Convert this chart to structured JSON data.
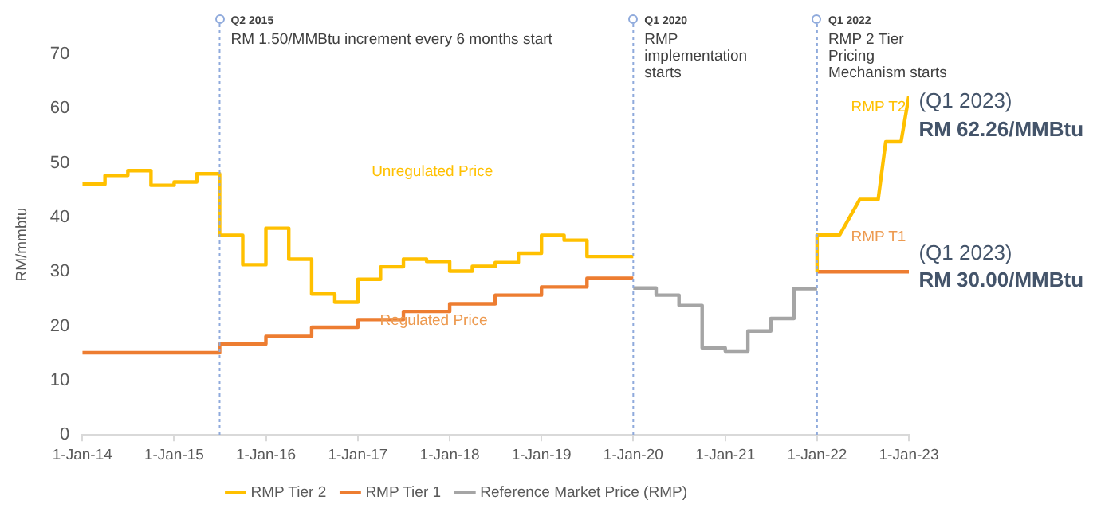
{
  "chart_data": {
    "type": "step",
    "ylabel": "RM/mmbtu",
    "xlim": [
      "2014-01-01",
      "2023-01-01"
    ],
    "xticks": [
      {
        "value": "2014-01-01",
        "label": "1-Jan-14"
      },
      {
        "value": "2015-01-01",
        "label": "1-Jan-15"
      },
      {
        "value": "2016-01-01",
        "label": "1-Jan-16"
      },
      {
        "value": "2017-01-01",
        "label": "1-Jan-17"
      },
      {
        "value": "2018-01-01",
        "label": "1-Jan-18"
      },
      {
        "value": "2019-01-01",
        "label": "1-Jan-19"
      },
      {
        "value": "2020-01-01",
        "label": "1-Jan-20"
      },
      {
        "value": "2021-01-01",
        "label": "1-Jan-21"
      },
      {
        "value": "2022-01-01",
        "label": "1-Jan-22"
      },
      {
        "value": "2023-01-01",
        "label": "1-Jan-23"
      }
    ],
    "ylim": [
      0,
      70
    ],
    "yticks": [
      0,
      10,
      20,
      30,
      40,
      50,
      60,
      70
    ],
    "grid": false,
    "legend": "bottom",
    "marker": "none",
    "line_style": "solid",
    "series": [
      {
        "name": "RMP Tier 2",
        "color": "#ffc000",
        "type": "line",
        "x": [
          "2014-01",
          "2014-04",
          "2014-04",
          "2014-07",
          "2014-07",
          "2014-10",
          "2014-10",
          "2015-01",
          "2015-01",
          "2015-04",
          "2015-04",
          "2015-07",
          "2015-07",
          "2015-10",
          "2015-10",
          "2016-01",
          "2016-01",
          "2016-04",
          "2016-04",
          "2016-07",
          "2016-07",
          "2016-10",
          "2016-10",
          "2017-01",
          "2017-01",
          "2017-04",
          "2017-04",
          "2017-07",
          "2017-07",
          "2017-10",
          "2017-10",
          "2018-01",
          "2018-01",
          "2018-04",
          "2018-04",
          "2018-07",
          "2018-07",
          "2018-10",
          "2018-10",
          "2019-01",
          "2019-01",
          "2019-04",
          "2019-04",
          "2019-07",
          "2019-07",
          "2020-01",
          "2021-01",
          "2022-01",
          "2022-01",
          "2022-04",
          "2022-06-20",
          "2022-09",
          "2022-10",
          "2022-12",
          "2023-01"
        ],
        "values": [
          46.1,
          46.1,
          47.7,
          47.7,
          48.6,
          48.6,
          45.9,
          45.9,
          46.5,
          46.5,
          48.0,
          48.0,
          36.7,
          36.7,
          31.3,
          31.3,
          38.0,
          38.0,
          32.3,
          32.3,
          25.9,
          25.9,
          24.4,
          24.4,
          28.6,
          28.6,
          30.9,
          30.9,
          32.3,
          32.3,
          31.9,
          31.9,
          30.1,
          30.1,
          31.0,
          31.0,
          31.7,
          31.7,
          33.4,
          33.4,
          36.7,
          36.7,
          35.8,
          35.8,
          32.8,
          32.8,
          null,
          30.0,
          36.8,
          36.8,
          43.3,
          43.3,
          53.9,
          53.9,
          62.26
        ]
      },
      {
        "name": "RMP Tier 1",
        "color": "#ed7d31",
        "x": [
          "2014-01",
          "2015-07",
          "2016-01",
          "2016-07",
          "2017-01",
          "2017-07",
          "2018-01",
          "2018-07",
          "2019-01",
          "2019-07",
          "2020-01",
          "2021-01",
          "2022-01",
          "2023-01"
        ],
        "values": [
          15.1,
          16.7,
          18.1,
          19.8,
          21.2,
          22.7,
          24.1,
          25.7,
          27.2,
          28.8,
          28.8,
          null,
          30.0,
          30.0
        ]
      },
      {
        "name": "Reference Market Price (RMP)",
        "color": "#a5a5a5",
        "x": [
          "2020-01",
          "2020-04",
          "2020-07",
          "2020-10",
          "2021-01",
          "2021-04",
          "2021-07",
          "2021-10",
          "2022-01"
        ],
        "values": [
          27.0,
          25.7,
          23.8,
          16.0,
          15.4,
          19.1,
          21.4,
          26.9,
          26.9
        ]
      }
    ],
    "ref_lines": [
      {
        "axis": "x",
        "value": "2015-07-01",
        "label": "Q2 2015\nRM 1.50/MMBtu increment every 6 months start",
        "color": "#8faadc",
        "line_style": "dashed"
      },
      {
        "axis": "x",
        "value": "2020-01-01",
        "label": "Q1 2020\nRMP\nimplementation\nstarts",
        "color": "#8faadc",
        "line_style": "dashed"
      },
      {
        "axis": "x",
        "value": "2022-01-01",
        "label": "Q1 2022\nRMP 2 Tier\nPricing\nMechanism starts",
        "color": "#8faadc",
        "line_style": "dashed"
      }
    ],
    "annotations": [
      "Unregulated Price",
      "Regulated Price",
      "RMP T2",
      "RMP T1",
      "(Q1 2023)",
      "RM 62.26/MMBtu",
      "(Q1 2023)",
      "RM 30.00/MMBtu"
    ]
  }
}
